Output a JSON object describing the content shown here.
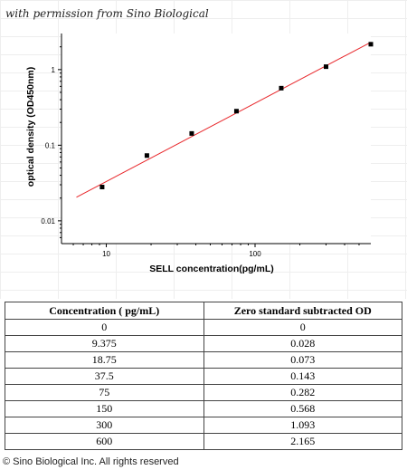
{
  "watermark": "with permission from Sino Biological",
  "copyright": "© Sino Biological Inc. All rights reserved",
  "chart_data": {
    "type": "scatter",
    "xlabel": "SELL  concentration(pg/mL)",
    "ylabel": "optical density (OD450nm)",
    "xscale": "log",
    "yscale": "log",
    "xlim": [
      5,
      600
    ],
    "ylim": [
      0.005,
      3
    ],
    "x_ticks": [
      10,
      100
    ],
    "x_tick_labels": [
      "10",
      "100"
    ],
    "y_ticks": [
      0.01,
      0.1,
      1
    ],
    "y_tick_labels": [
      "0.01",
      "0.1",
      "1"
    ],
    "grid": false,
    "point_color": "#000000",
    "fit_color": "#e8262a",
    "points": [
      {
        "x": 9.375,
        "y": 0.028
      },
      {
        "x": 18.75,
        "y": 0.073
      },
      {
        "x": 37.5,
        "y": 0.143
      },
      {
        "x": 75,
        "y": 0.282
      },
      {
        "x": 150,
        "y": 0.568
      },
      {
        "x": 300,
        "y": 1.093
      },
      {
        "x": 600,
        "y": 2.165
      }
    ],
    "fit_line": {
      "x": [
        6.3,
        600
      ],
      "y": [
        0.0205,
        2.3
      ]
    }
  },
  "table": {
    "headers": [
      "Concentration ( pg/mL)",
      "Zero standard subtracted OD"
    ],
    "rows": [
      [
        "0",
        "0"
      ],
      [
        "9.375",
        "0.028"
      ],
      [
        "18.75",
        "0.073"
      ],
      [
        "37.5",
        "0.143"
      ],
      [
        "75",
        "0.282"
      ],
      [
        "150",
        "0.568"
      ],
      [
        "300",
        "1.093"
      ],
      [
        "600",
        "2.165"
      ]
    ]
  }
}
